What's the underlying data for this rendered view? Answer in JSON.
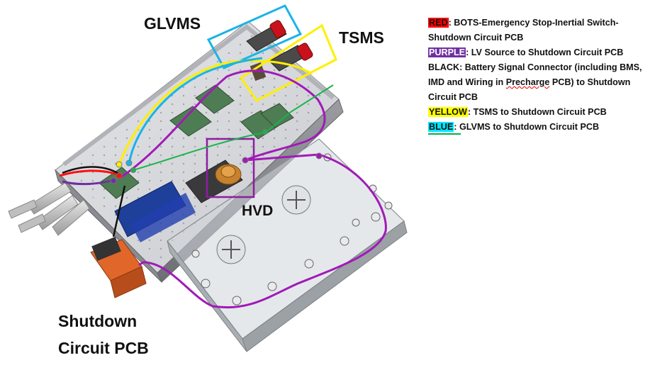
{
  "labels": {
    "glvms": "GLVMS",
    "tsms": "TSMS",
    "hvd": "HVD",
    "shutdown_line1": "Shutdown",
    "shutdown_line2": "Circuit PCB"
  },
  "legend": {
    "red": {
      "key": "RED",
      "text": ": BOTS-Emergency Stop-Inertial Switch-Shutdown Circuit PCB",
      "color": "#ff0000"
    },
    "purple": {
      "key": "PURPLE",
      "text": ": LV Source to Shutdown Circuit PCB",
      "color": "#7030a0"
    },
    "black": {
      "key": "BLACK",
      "text_before": ": Battery Signal Connector (including BMS, IMD and Wiring in ",
      "squiggle": "Precharge",
      "text_after": " PCB) to Shutdown Circuit PCB",
      "color": "#000000"
    },
    "yellow": {
      "key": "YELLOW",
      "text": ": TSMS to Shutdown Circuit PCB",
      "color": "#ffff00"
    },
    "blue": {
      "key": "BLUE",
      "text": ": GLVMS to Shutdown Circuit PCB",
      "color": "#00e5ff"
    },
    "green_underline_color": "#00b050"
  }
}
